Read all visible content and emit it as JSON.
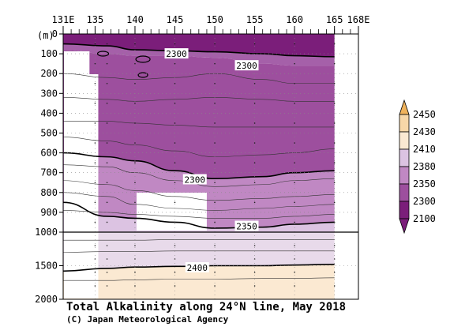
{
  "chart_data": {
    "type": "heatmap",
    "title": "Total Alkalinity along 24°N line, May 2018",
    "credit": "(C) Japan Meteorological Agency",
    "x_ticks": [
      "131E",
      "135",
      "140",
      "145",
      "150",
      "155",
      "160",
      "165",
      "168E"
    ],
    "x_tick_values": [
      131,
      135,
      140,
      145,
      150,
      155,
      160,
      165,
      168
    ],
    "xlim": [
      131,
      168
    ],
    "depth_unit": "(m)",
    "depth_ticks_upper": [
      "0",
      "100",
      "200",
      "300",
      "400",
      "500",
      "600",
      "700",
      "800",
      "900",
      "1000"
    ],
    "depth_ticks_lower": [
      "1500",
      "2000"
    ],
    "depth_break": 1000,
    "ylim": [
      0,
      2000
    ],
    "legend": {
      "levels": [
        "2100",
        "2300",
        "2350",
        "2380",
        "2410",
        "2430",
        "2450"
      ],
      "colors": [
        "#7b1e7a",
        "#9d4f9e",
        "#c088c3",
        "#dcc3e2",
        "#fbe9d2",
        "#f7d7a8",
        "#f0b35c"
      ]
    },
    "contour_labels": [
      {
        "value": "2300",
        "lon": 145.2,
        "depth": 100
      },
      {
        "value": "2300",
        "lon": 154,
        "depth": 160
      },
      {
        "value": "2300",
        "lon": 147.5,
        "depth": 735
      },
      {
        "value": "2350",
        "lon": 154,
        "depth": 970
      },
      {
        "value": "2400",
        "lon": 147.8,
        "depth": 1530
      }
    ],
    "sections": [
      {
        "lon": [
          131,
          136.5,
          140,
          145,
          150,
          156,
          160,
          165
        ],
        "depth": [
          0,
          0,
          0,
          0,
          0,
          0,
          0,
          0
        ]
      },
      {
        "lon": [
          131,
          136.5,
          140,
          145,
          150,
          156,
          160,
          165
        ],
        "depth": [
          50,
          60,
          80,
          85,
          90,
          100,
          110,
          115
        ]
      },
      {
        "lon": [
          131,
          136.5,
          140,
          145,
          150,
          156,
          160,
          165
        ],
        "depth": [
          80,
          100,
          110,
          110,
          120,
          150,
          160,
          160
        ]
      },
      {
        "lon": [
          131,
          136.5,
          140,
          145,
          150,
          156,
          160,
          165
        ],
        "depth": [
          600,
          620,
          640,
          690,
          730,
          720,
          700,
          690
        ]
      },
      {
        "lon": [
          131,
          136.5,
          140,
          145,
          150,
          156,
          160,
          165
        ],
        "depth": [
          850,
          920,
          930,
          950,
          980,
          975,
          960,
          950
        ]
      },
      {
        "lon": [
          131,
          136.5,
          140,
          145,
          150,
          156,
          160,
          165
        ],
        "depth": [
          1000,
          1000,
          1000,
          1000,
          1000,
          1000,
          1000,
          1000
        ]
      },
      {
        "lon": [
          131,
          136.5,
          140,
          145,
          150,
          156,
          160,
          165
        ],
        "depth": [
          1580,
          1540,
          1520,
          1510,
          1500,
          1500,
          1490,
          1480
        ]
      },
      {
        "lon": [
          131,
          136.5,
          140,
          145,
          150,
          156,
          160,
          165
        ],
        "depth": [
          2000,
          2000,
          2000,
          2000,
          2000,
          2000,
          2000,
          2000
        ]
      }
    ],
    "section_colors": [
      "#7b1e7a",
      "#a560a9",
      "#9d4f9e",
      "#c088c3",
      "#dcc3e2",
      "#e8daea",
      "#fbe9d2"
    ]
  }
}
